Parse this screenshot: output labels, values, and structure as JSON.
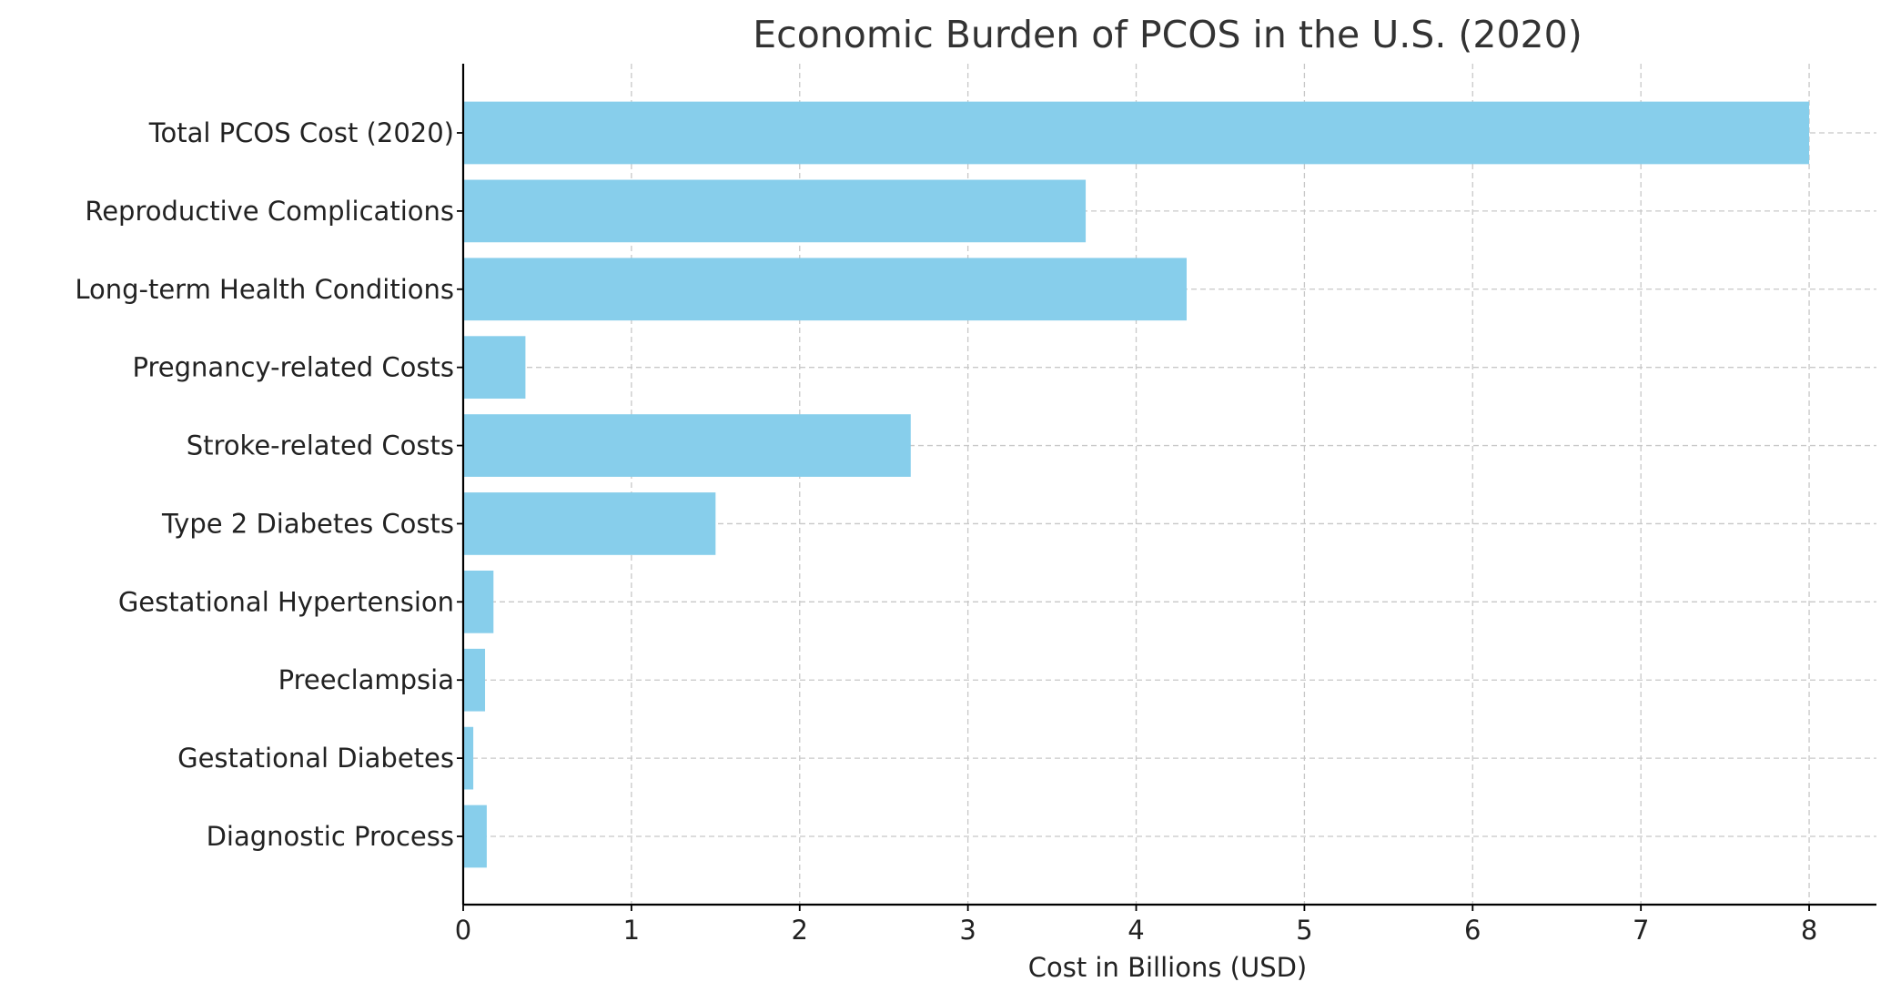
{
  "chart_data": {
    "type": "bar",
    "orientation": "horizontal",
    "title": "Economic Burden of PCOS in the U.S. (2020)",
    "xlabel": "Cost in Billions (USD)",
    "ylabel": "",
    "xlim": [
      0,
      8.4
    ],
    "xticks": [
      0,
      1,
      2,
      3,
      4,
      5,
      6,
      7,
      8
    ],
    "grid": true,
    "bar_color": "#87ceeb",
    "categories": [
      "Diagnostic Process",
      "Gestational Diabetes",
      "Preeclampsia",
      "Gestational Hypertension",
      "Type 2 Diabetes Costs",
      "Stroke-related Costs",
      "Pregnancy-related Costs",
      "Long-term Health Conditions",
      "Reproductive Complications",
      "Total PCOS Cost (2020)"
    ],
    "values": [
      0.14,
      0.06,
      0.13,
      0.18,
      1.5,
      2.66,
      0.37,
      4.3,
      3.7,
      8.0
    ]
  }
}
